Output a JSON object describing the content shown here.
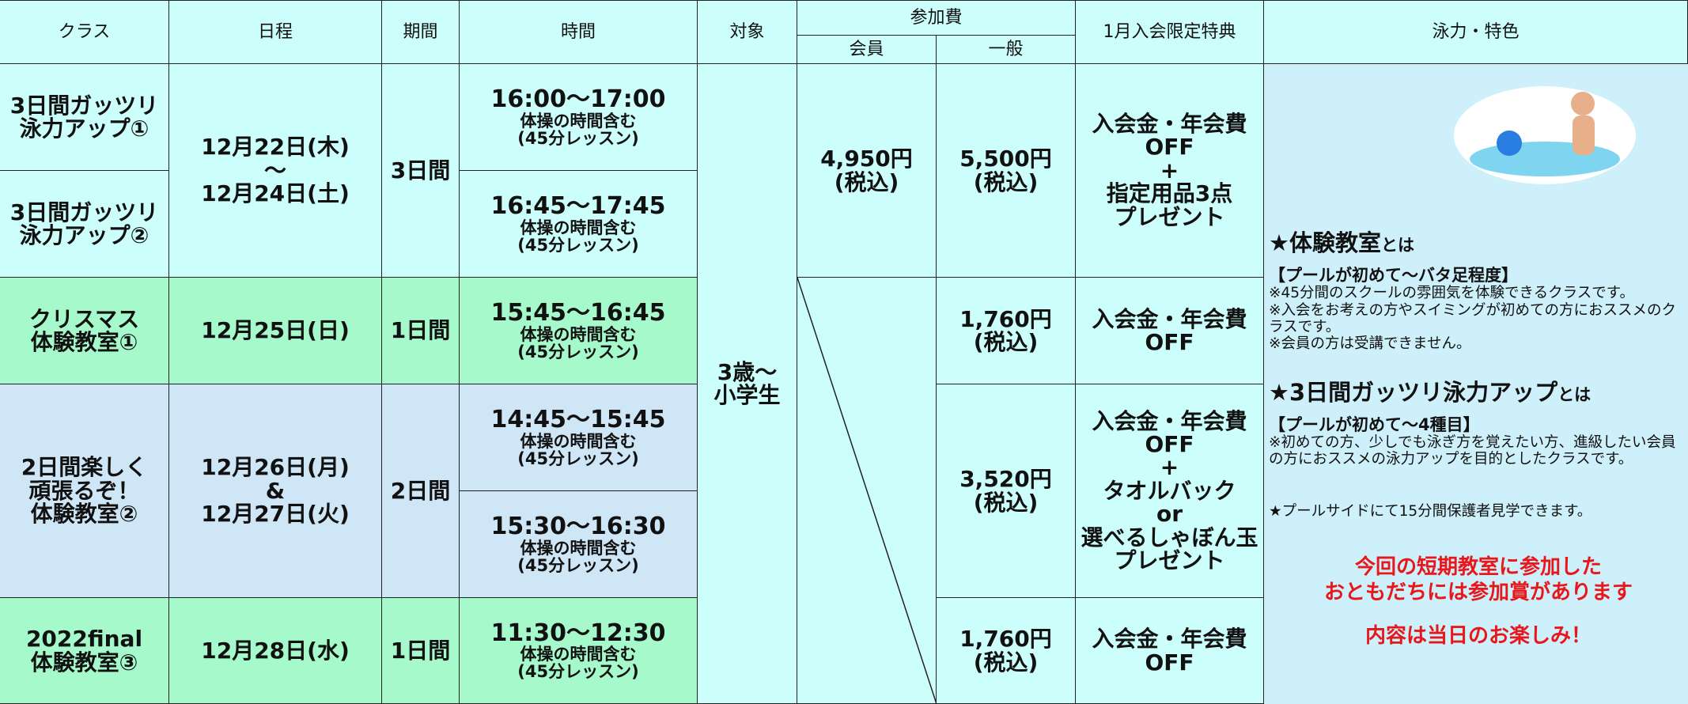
{
  "header": {
    "class": "クラス",
    "schedule": "日程",
    "period": "期間",
    "time": "時間",
    "target": "対象",
    "fee": "参加費",
    "member": "会員",
    "general": "一般",
    "benefit": "1月入会限定特典",
    "feature": "泳力・特色"
  },
  "classes": [
    [
      "3日間ガッツリ",
      "泳力アップ①"
    ],
    [
      "3日間ガッツリ",
      "泳力アップ②"
    ],
    [
      "クリスマス",
      "体験教室①"
    ],
    [
      "2日間楽しく",
      "頑張るぞ！",
      "体験教室②"
    ],
    [
      "2022final",
      "体験教室③"
    ]
  ],
  "schedules": [
    [
      "12月22日(木)",
      "～",
      "12月24日(土)"
    ],
    [
      "12月25日(日)"
    ],
    [
      "12月26日(月)",
      "&",
      "12月27日(火)"
    ],
    [
      "12月28日(水)"
    ]
  ],
  "periods": [
    "3日間",
    "1日間",
    "2日間",
    "1日間"
  ],
  "times": [
    {
      "time": "16:00～17:00",
      "note": "体操の時間含む",
      "lesson": "(45分レッスン)"
    },
    {
      "time": "16:45～17:45",
      "note": "体操の時間含む",
      "lesson": "(45分レッスン)"
    },
    {
      "time": "15:45～16:45",
      "note": "体操の時間含む",
      "lesson": "(45分レッスン)"
    },
    {
      "time": "14:45～15:45",
      "note": "体操の時間含む",
      "lesson": "(45分レッスン)"
    },
    {
      "time": "15:30～16:30",
      "note": "体操の時間含む",
      "lesson": "(45分レッスン)"
    },
    {
      "time": "11:30～12:30",
      "note": "体操の時間含む",
      "lesson": "(45分レッスン)"
    }
  ],
  "target": [
    "3歳～",
    "小学生"
  ],
  "member_fee": [
    "4,950円",
    "(税込)"
  ],
  "general_fees": [
    [
      "5,500円",
      "(税込)"
    ],
    [
      "1,760円",
      "(税込)"
    ],
    [
      "3,520円",
      "(税込)"
    ],
    [
      "1,760円",
      "(税込)"
    ]
  ],
  "benefits": [
    [
      "入会金・年会費",
      "OFF",
      "+",
      "指定用品3点",
      "プレゼント"
    ],
    [
      "入会金・年会費",
      "OFF"
    ],
    [
      "入会金・年会費",
      "OFF",
      "+",
      "タオルバック",
      "or",
      "選べるしゃぼん玉",
      "プレゼント"
    ],
    [
      "入会金・年会費",
      "OFF"
    ]
  ],
  "feature": {
    "heading1": "★体験教室",
    "heading1_suffix": "とは",
    "level1": "【プールが初めて～バタ足程度】",
    "notes1": [
      "※45分間のスクールの雰囲気を体験できるクラスです。",
      "※入会をお考えの方やスイミングが初めての方におススメのクラスです。",
      "※会員の方は受講できません。"
    ],
    "heading2": "★3日間ガッツリ泳力アップ",
    "heading2_suffix": "とは",
    "level2": "【プールが初めて～4種目】",
    "notes2": [
      "※初めての方、少しでも泳ぎ方を覚えたい方、進級したい会員の方におススメの泳力アップを目的としたクラスです。"
    ],
    "observe": "★プールサイドにて15分間保護者見学できます。",
    "prize": [
      "今回の短期教室に参加した",
      "おともだちには参加賞があります"
    ],
    "prize_note": "内容は当日のお楽しみ！"
  }
}
